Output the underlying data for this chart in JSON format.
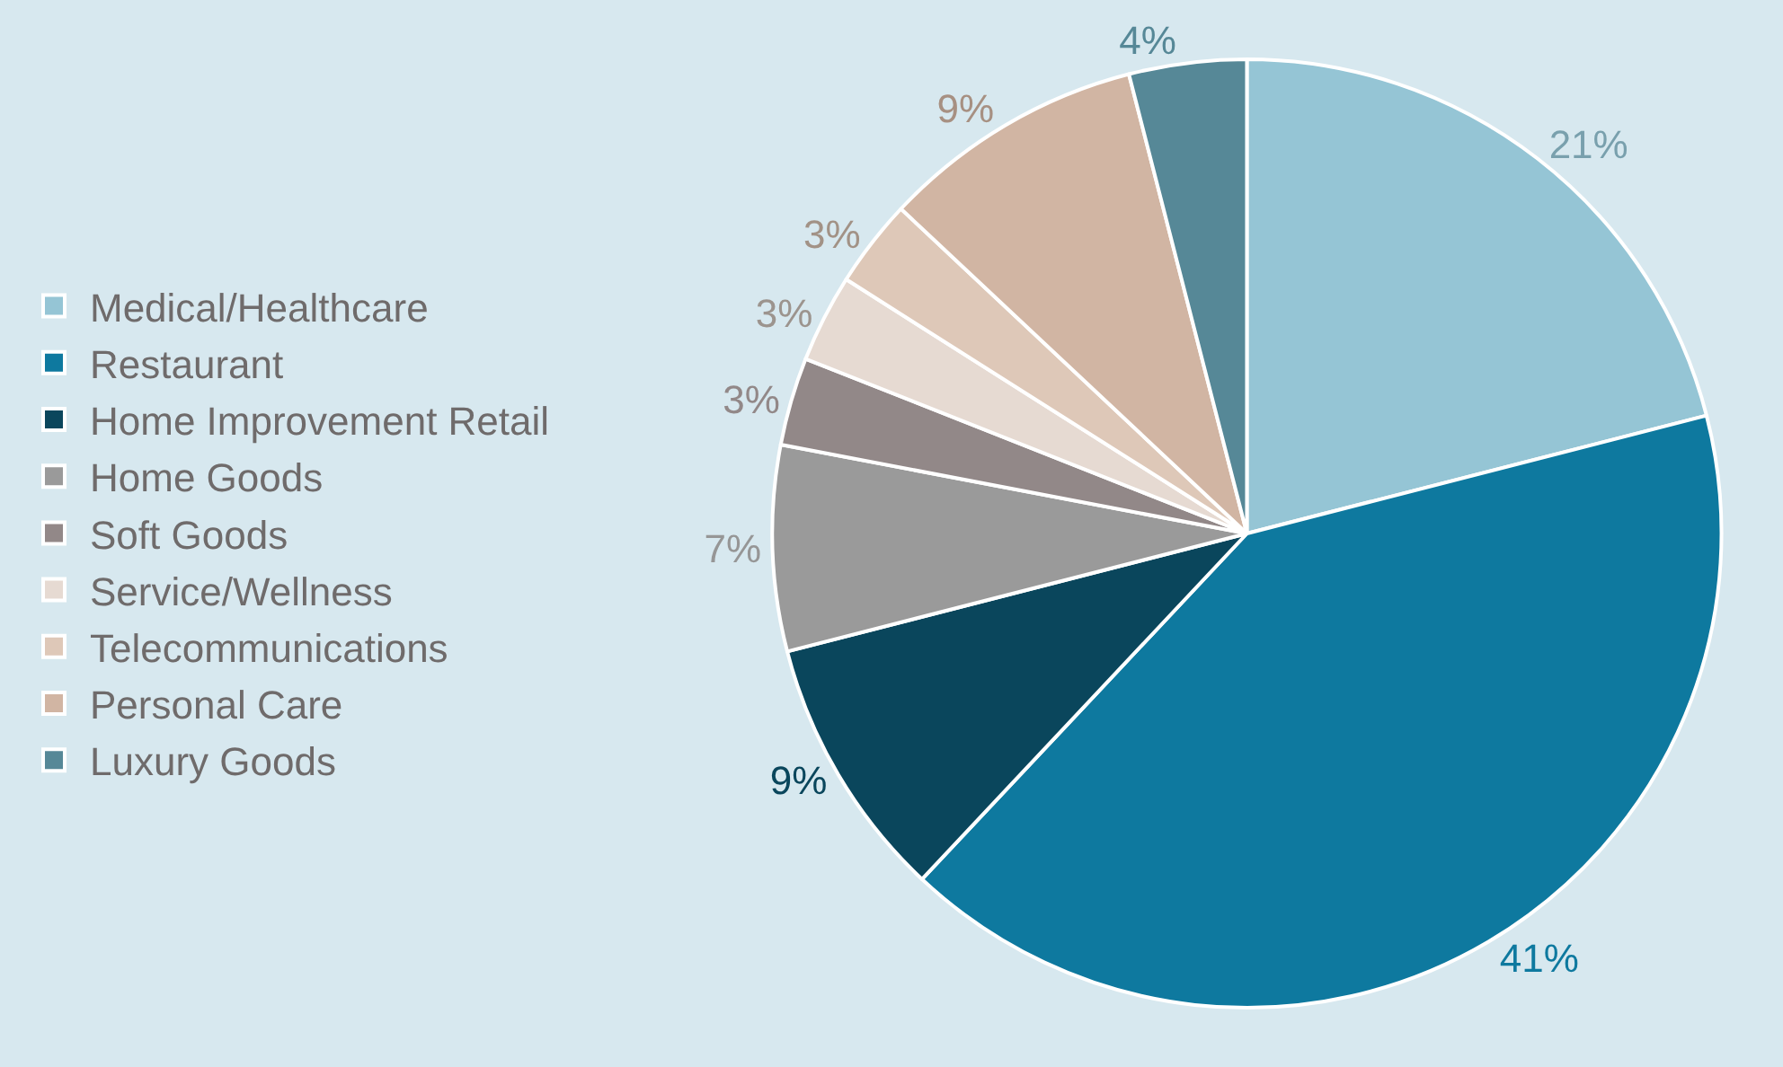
{
  "chart_data": {
    "type": "pie",
    "categories": [
      "Medical/Healthcare",
      "Restaurant",
      "Home Improvement Retail",
      "Home Goods",
      "Soft Goods",
      "Service/Wellness",
      "Telecommunications",
      "Personal Care",
      "Luxury Goods"
    ],
    "values": [
      21,
      41,
      9,
      7,
      3,
      3,
      3,
      9,
      4
    ],
    "value_labels": [
      "21%",
      "41%",
      "9%",
      "7%",
      "3%",
      "3%",
      "3%",
      "9%",
      "4%"
    ],
    "colors": [
      "#95c5d5",
      "#0e799f",
      "#0a465c",
      "#9a9a9a",
      "#928888",
      "#e6dad2",
      "#dec8b8",
      "#d1b5a3",
      "#568897"
    ],
    "legend": "left"
  }
}
